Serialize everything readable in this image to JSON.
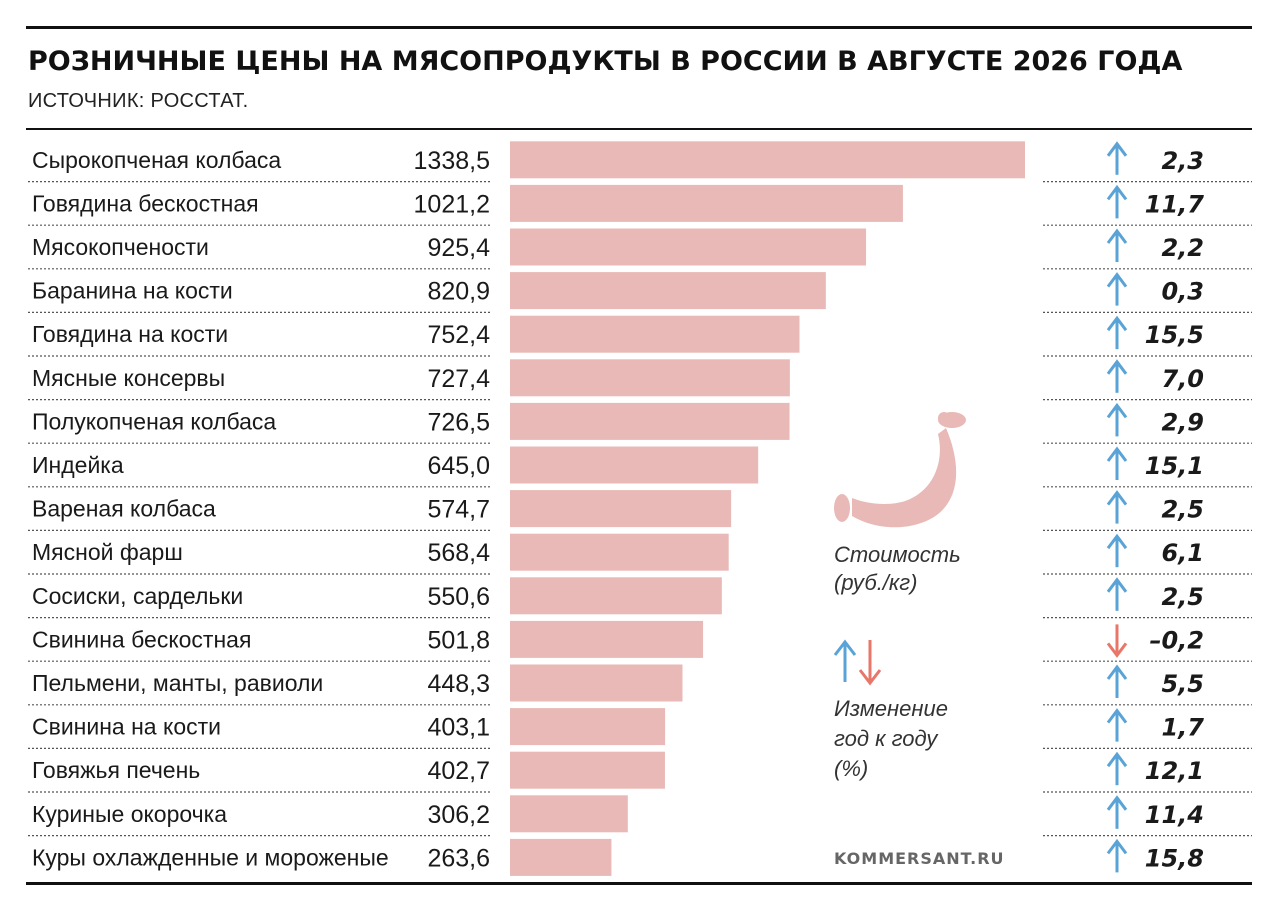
{
  "title": "РОЗНИЧНЫЕ ЦЕНЫ НА МЯСОПРОДУКТЫ В РОССИИ В АВГУСТЕ 2026 ГОДА",
  "source": "ИСТОЧНИК: РОССТАТ.",
  "legend": {
    "price_label_line1": "Стоимость",
    "price_label_line2": "(руб./кг)",
    "change_label_line1": "Изменение",
    "change_label_line2": "год к году",
    "change_label_line3": "(%)",
    "sausage_icon": "sausage-icon"
  },
  "credit": "KOMMERSANT.RU",
  "colors": {
    "bar": "#e8b9b6",
    "arrow_up": "#5aa3d6",
    "arrow_down": "#e8776a",
    "rule": "#111111",
    "divider": "#555555"
  },
  "chart_data": {
    "type": "bar",
    "orientation": "horizontal",
    "xlim": [
      0,
      1338.5
    ],
    "categories": [
      "Сырокопченая колбаса",
      "Говядина бескостная",
      "Мясокопчености",
      "Баранина на кости",
      "Говядина на кости",
      "Мясные консервы",
      "Полукопченая колбаса",
      "Индейка",
      "Вареная колбаса",
      "Мясной фарш",
      "Сосиски, сардельки",
      "Свинина бескостная",
      "Пельмени, манты, равиоли",
      "Свинина на кости",
      "Говяжья печень",
      "Куриные окорочка",
      "Куры охлажденные и мороженые"
    ],
    "series": [
      {
        "name": "Стоимость (руб./кг)",
        "values": [
          1338.5,
          1021.2,
          925.4,
          820.9,
          752.4,
          727.4,
          726.5,
          645.0,
          574.7,
          568.4,
          550.6,
          501.8,
          448.3,
          403.1,
          402.7,
          306.2,
          263.6
        ],
        "labels": [
          "1338,5",
          "1021,2",
          "925,4",
          "820,9",
          "752,4",
          "727,4",
          "726,5",
          "645,0",
          "574,7",
          "568,4",
          "550,6",
          "501,8",
          "448,3",
          "403,1",
          "402,7",
          "306,2",
          "263,6"
        ]
      },
      {
        "name": "Изменение год к году (%)",
        "values": [
          2.3,
          11.7,
          2.2,
          0.3,
          15.5,
          7.0,
          2.9,
          15.1,
          2.5,
          6.1,
          2.5,
          -0.2,
          5.5,
          1.7,
          12.1,
          11.4,
          15.8
        ],
        "labels": [
          "2,3",
          "11,7",
          "2,2",
          "0,3",
          "15,5",
          "7,0",
          "2,9",
          "15,1",
          "2,5",
          "6,1",
          "2,5",
          "–0,2",
          "5,5",
          "1,7",
          "12,1",
          "11,4",
          "15,8"
        ]
      }
    ]
  }
}
